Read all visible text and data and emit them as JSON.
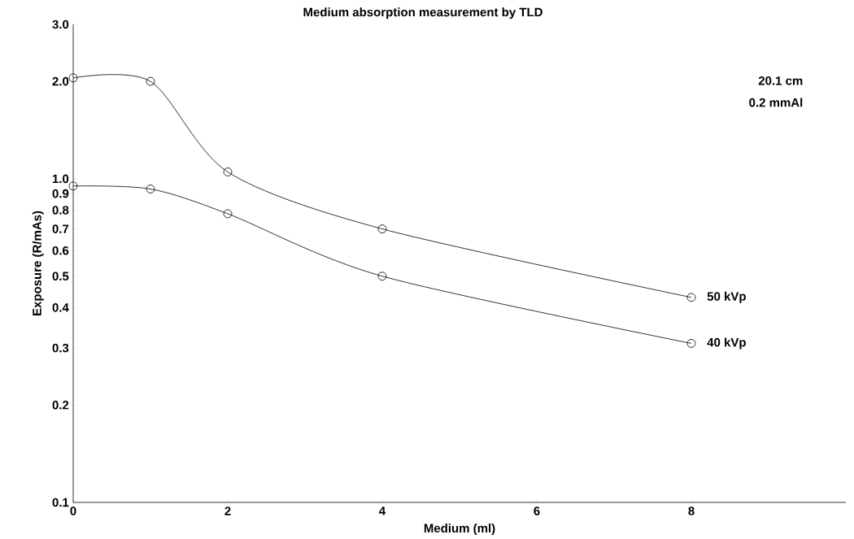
{
  "chart_data": {
    "type": "line",
    "title": "Medium absorption measurement by TLD",
    "xlabel": "Medium  (ml)",
    "ylabel": "Exposure (R/mAs)",
    "x": [
      0,
      1,
      2,
      4,
      8
    ],
    "series": [
      {
        "name": "50 kVp",
        "color": "#000000",
        "values": [
          2.05,
          2.0,
          1.05,
          0.7,
          0.43
        ]
      },
      {
        "name": "40 kVp",
        "color": "#000000",
        "values": [
          0.95,
          0.93,
          0.78,
          0.5,
          0.31
        ]
      }
    ],
    "log": "y",
    "xlim": [
      0,
      10
    ],
    "xticks": [
      0,
      2,
      4,
      6,
      8
    ],
    "ylim": [
      0.1,
      3.0
    ],
    "yticks": [
      0.1,
      0.2,
      0.3,
      0.4,
      0.5,
      0.6,
      0.7,
      0.8,
      0.9,
      {
        "value": 1.0,
        "label": "1.0"
      },
      {
        "value": 2.0,
        "label": "2.0"
      },
      {
        "value": 3.0,
        "label": "3.0"
      }
    ],
    "marker": "circle",
    "grid": false,
    "legend": false,
    "annotations": [
      "20.1 cm",
      "0.2 mmAl"
    ]
  }
}
